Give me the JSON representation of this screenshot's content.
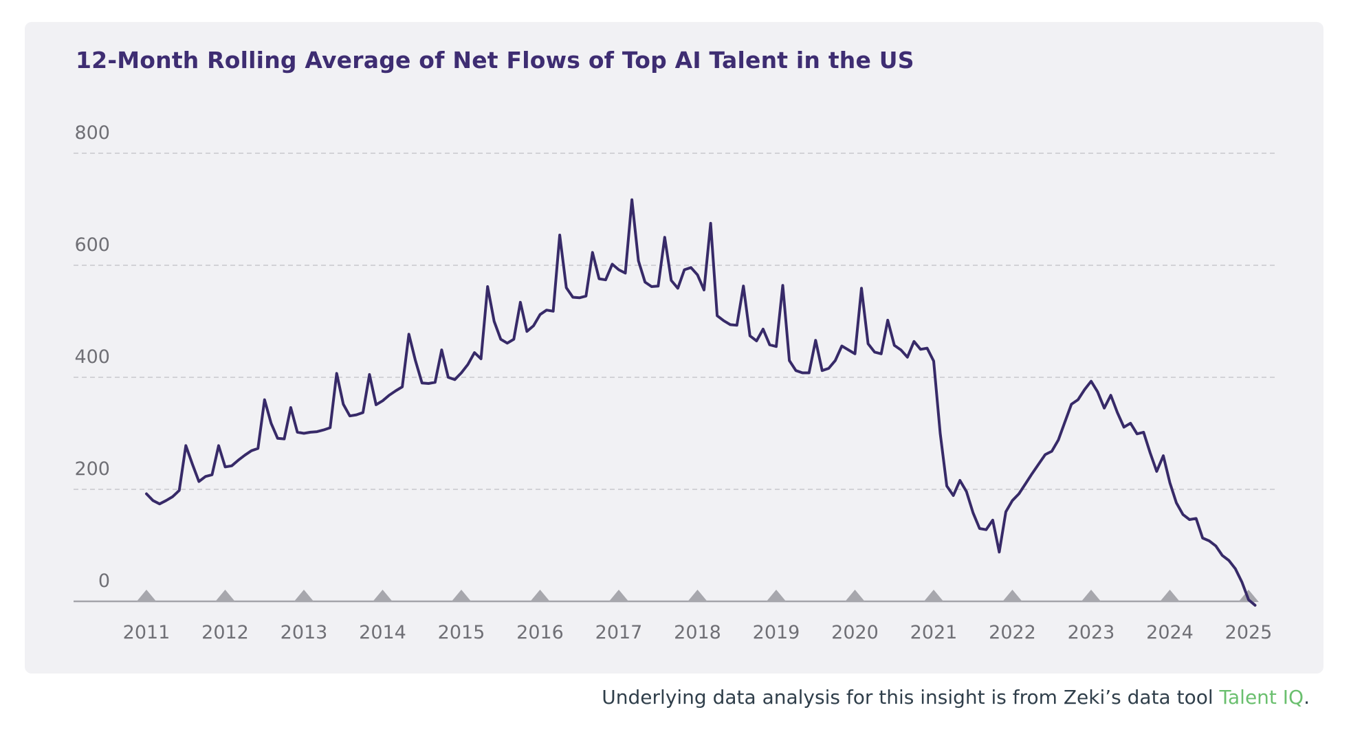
{
  "title": "12-Month Rolling Average of Net Flows of Top AI Talent in the US",
  "footer": {
    "text_before": "Underlying data analysis for this insight is from Zeki’s data tool ",
    "link_text": "Talent IQ",
    "text_after": "."
  },
  "colors": {
    "card_bg": "#f1f1f4",
    "page_bg": "#ffffff",
    "title": "#3e2d72",
    "line": "#372a68",
    "grid": "#c8c8cc",
    "axis": "#a3a3a9",
    "triangle": "#a7a7ad",
    "tick_label": "#6f6f75",
    "footer_text": "#2f3e4a",
    "link_green": "#6abf6e"
  },
  "chart_data": {
    "type": "line",
    "title": "12-Month Rolling Average of Net Flows of Top AI Talent in the US",
    "xlabel": "",
    "ylabel": "",
    "x_interval": "monthly",
    "x_start": "2011-01",
    "x_ticks": [
      "2011",
      "2012",
      "2013",
      "2014",
      "2015",
      "2016",
      "2017",
      "2018",
      "2019",
      "2020",
      "2021",
      "2022",
      "2023",
      "2024",
      "2025"
    ],
    "y_ticks": [
      0,
      200,
      400,
      600,
      800
    ],
    "ylim": [
      -20,
      850
    ],
    "grid": "horizontal-dashed",
    "legend": "none",
    "series": [
      {
        "name": "Net flows of top AI talent (12-month rolling average)",
        "color": "#372a68",
        "values": [
          192,
          180,
          174,
          180,
          187,
          198,
          278,
          245,
          214,
          223,
          226,
          278,
          240,
          242,
          252,
          261,
          269,
          273,
          360,
          318,
          291,
          290,
          346,
          302,
          300,
          302,
          303,
          306,
          310,
          407,
          352,
          331,
          333,
          337,
          405,
          351,
          358,
          368,
          376,
          383,
          477,
          430,
          390,
          389,
          391,
          449,
          400,
          396,
          408,
          423,
          444,
          433,
          562,
          500,
          468,
          461,
          468,
          534,
          482,
          492,
          512,
          520,
          518,
          654,
          560,
          543,
          542,
          545,
          623,
          576,
          574,
          602,
          592,
          586,
          717,
          608,
          570,
          562,
          563,
          650,
          573,
          559,
          592,
          596,
          583,
          556,
          675,
          510,
          501,
          494,
          493,
          563,
          474,
          465,
          486,
          458,
          455,
          564,
          430,
          412,
          408,
          408,
          466,
          412,
          416,
          430,
          456,
          449,
          442,
          559,
          460,
          445,
          442,
          502,
          457,
          449,
          436,
          464,
          450,
          452,
          429,
          300,
          206,
          189,
          216,
          196,
          158,
          130,
          128,
          145,
          88,
          160,
          180,
          192,
          210,
          228,
          245,
          262,
          268,
          288,
          320,
          352,
          360,
          378,
          393,
          374,
          345,
          368,
          337,
          311,
          318,
          299,
          302,
          265,
          232,
          260,
          212,
          176,
          155,
          146,
          148,
          113,
          108,
          99,
          82,
          73,
          58,
          34,
          3,
          -7
        ]
      }
    ]
  }
}
